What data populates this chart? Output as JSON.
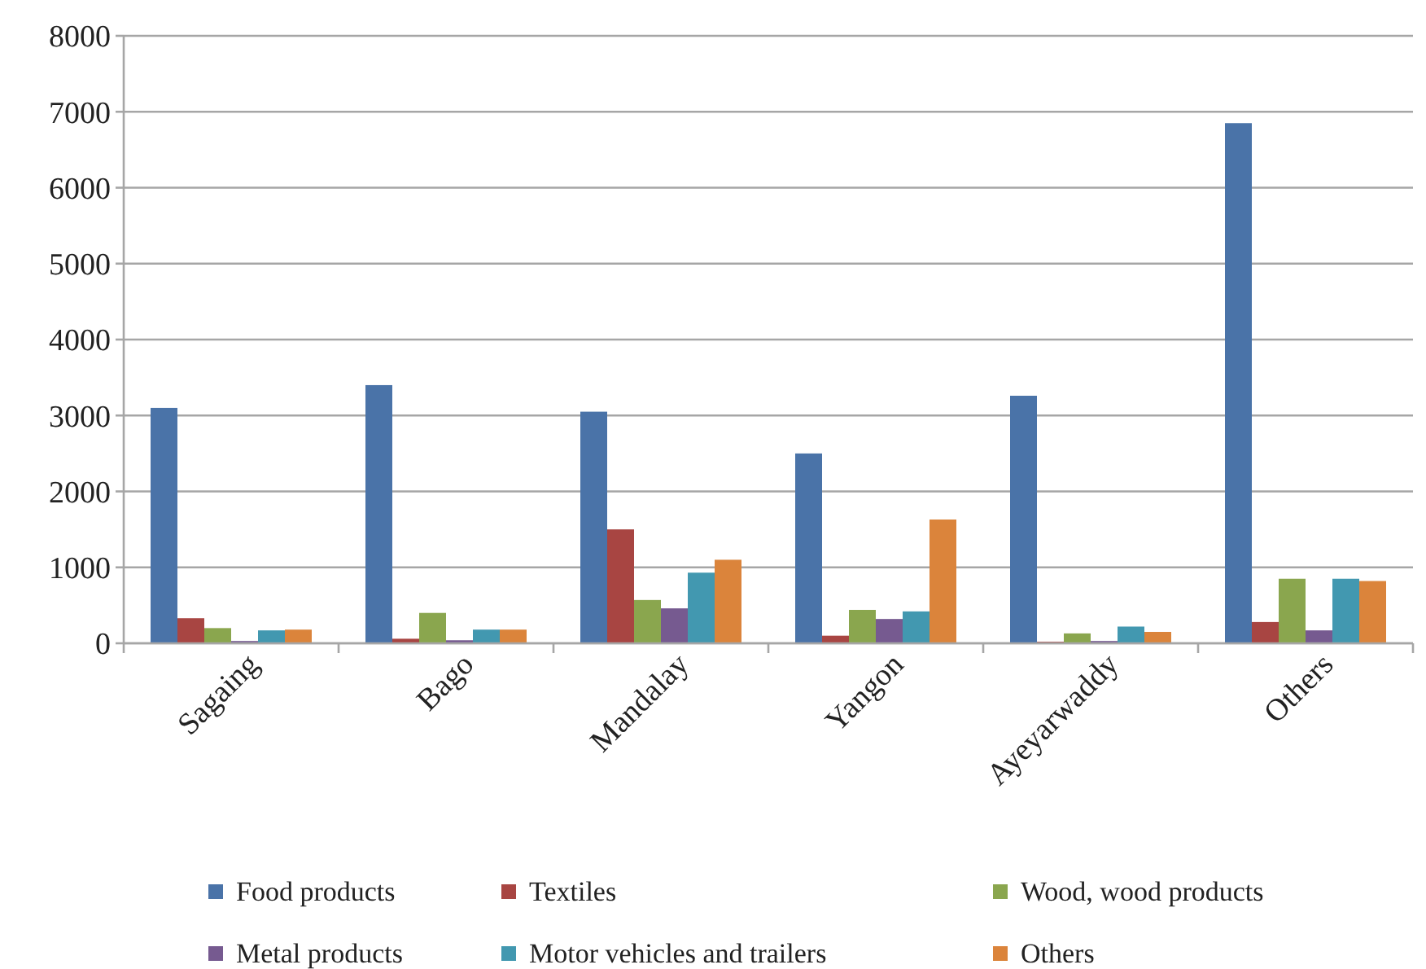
{
  "chart_data": {
    "type": "bar",
    "categories": [
      "Sagaing",
      "Bago",
      "Mandalay",
      "Yangon",
      "Ayeyarwaddy",
      "Others"
    ],
    "series": [
      {
        "name": "Food products",
        "color": "#4a73a8",
        "values": [
          3100,
          3400,
          3050,
          2500,
          3260,
          6850
        ]
      },
      {
        "name": "Textiles",
        "color": "#a84542",
        "values": [
          330,
          60,
          1500,
          100,
          20,
          280
        ]
      },
      {
        "name": "Wood, wood products",
        "color": "#8aa64e",
        "values": [
          200,
          400,
          570,
          440,
          130,
          850
        ]
      },
      {
        "name": "Metal products",
        "color": "#765a90",
        "values": [
          30,
          40,
          460,
          320,
          30,
          170
        ]
      },
      {
        "name": "Motor vehicles and trailers",
        "color": "#4298b0",
        "values": [
          170,
          180,
          930,
          420,
          220,
          850
        ]
      },
      {
        "name": "Others",
        "color": "#db843b",
        "values": [
          180,
          180,
          1100,
          1630,
          150,
          820
        ]
      }
    ],
    "ylim": [
      0,
      8000
    ],
    "yticks": [
      0,
      1000,
      2000,
      3000,
      4000,
      5000,
      6000,
      7000,
      8000
    ],
    "grid": "y",
    "legend": "bottom"
  }
}
